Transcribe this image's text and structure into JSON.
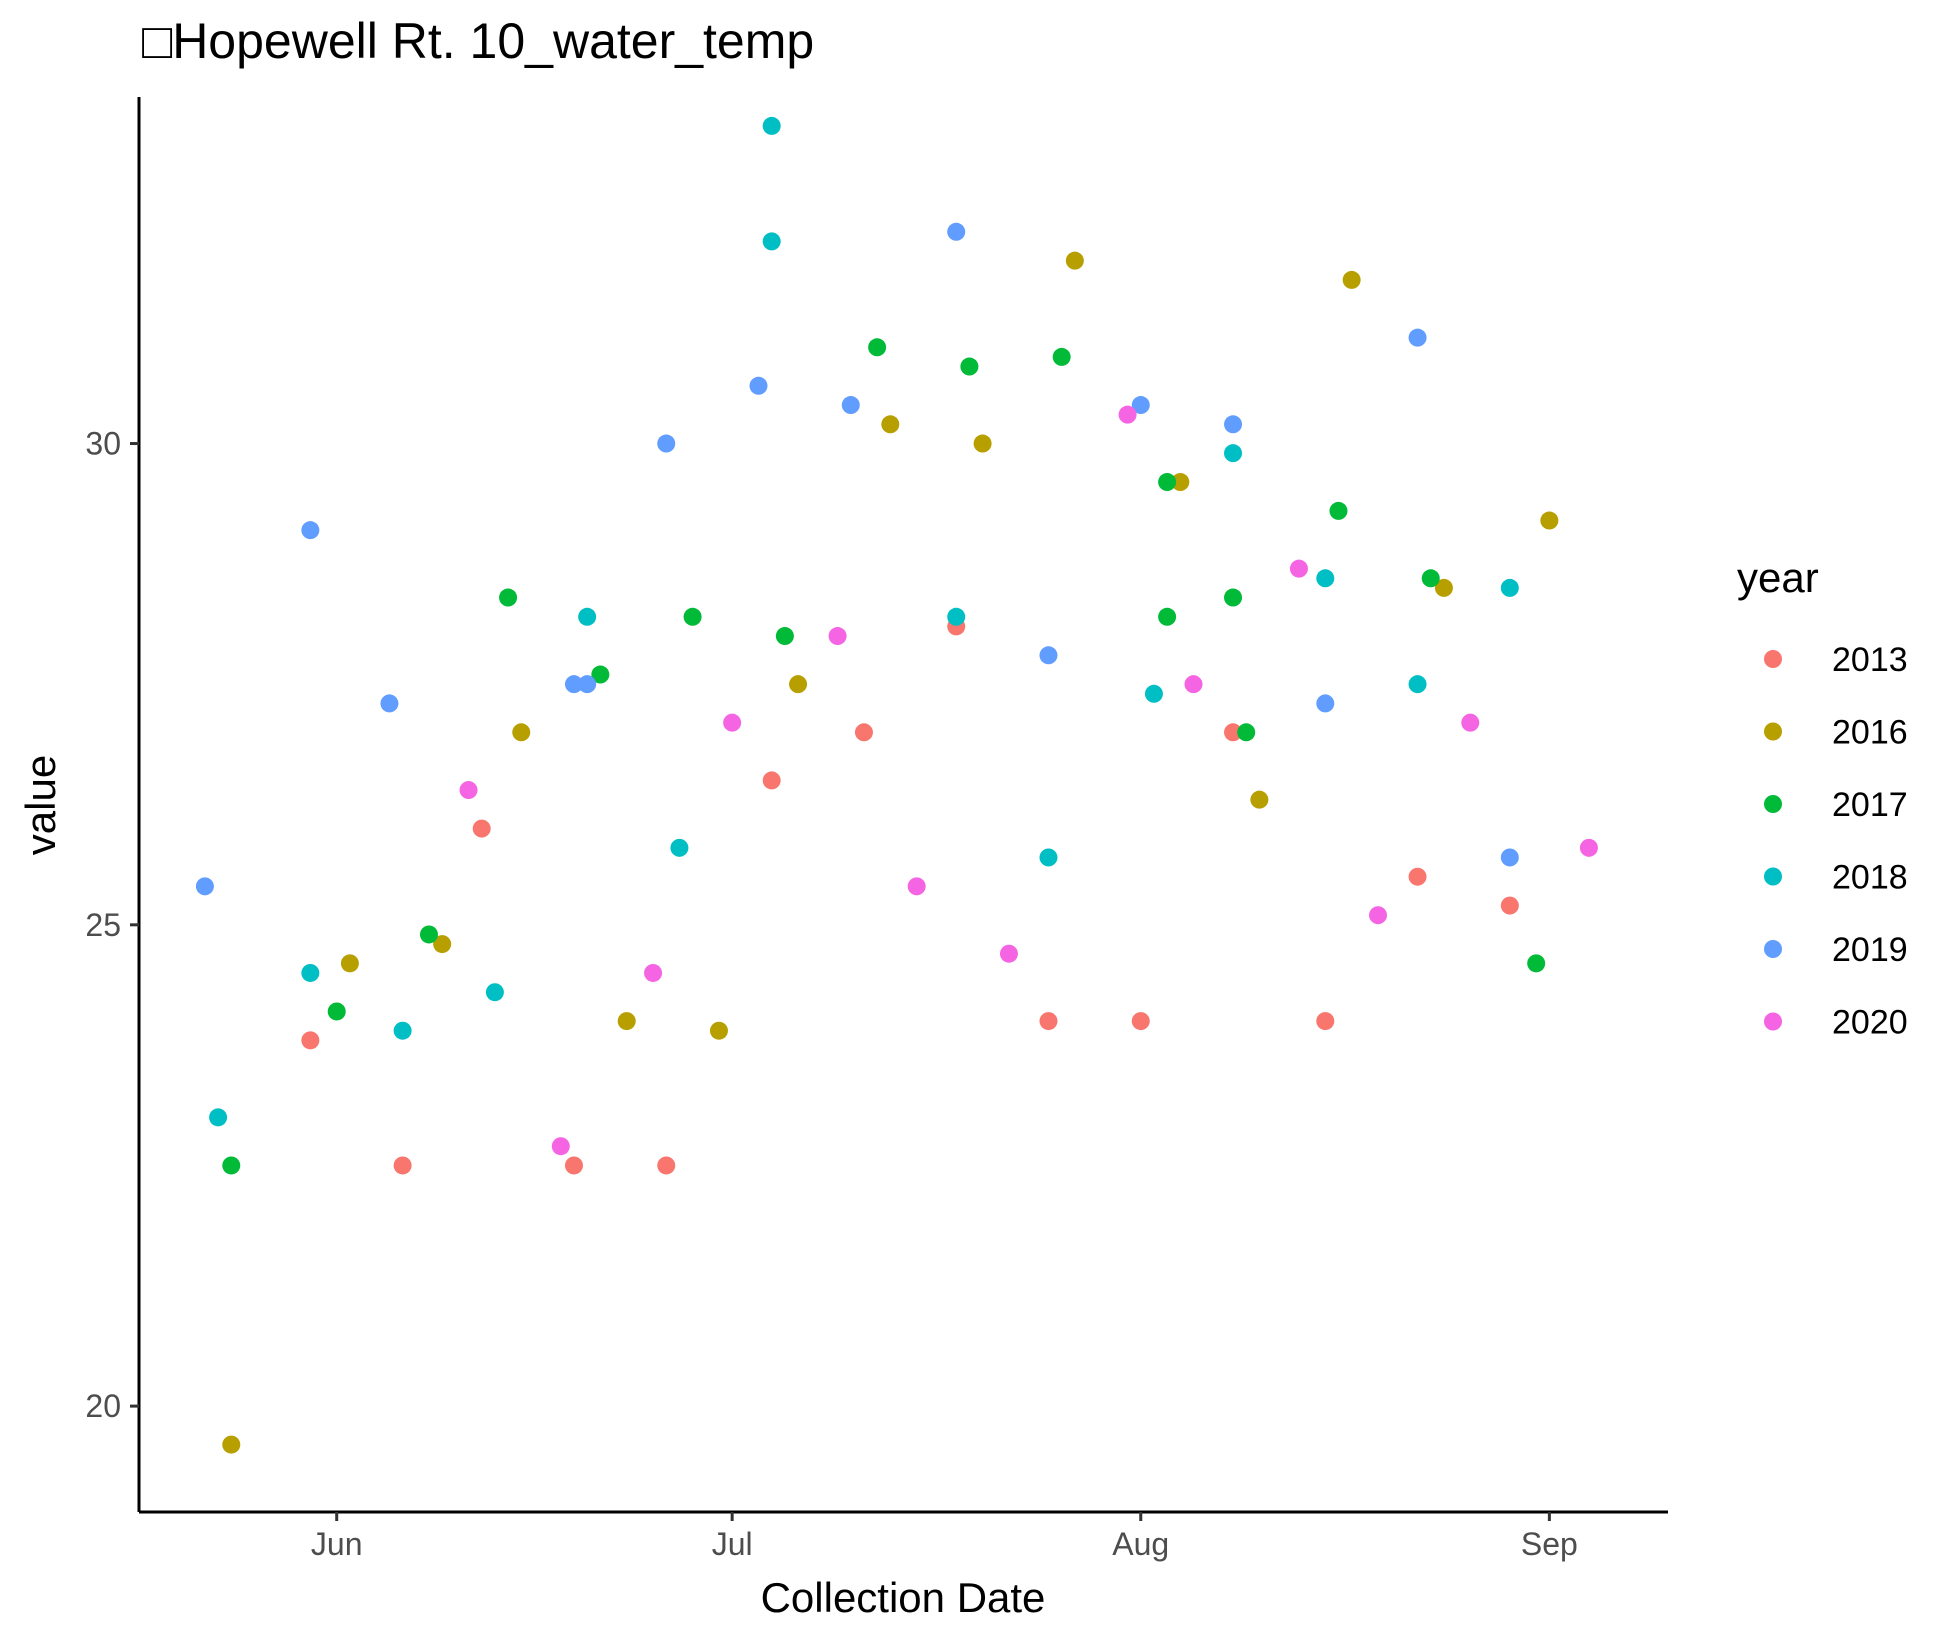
{
  "chart_data": {
    "type": "scatter",
    "title": "□Hopewell Rt. 10_water_temp",
    "xlabel": "Collection Date",
    "ylabel": "value",
    "x_ticks": [
      {
        "date": "2020-06-01",
        "label": "Jun"
      },
      {
        "date": "2020-07-01",
        "label": "Jul"
      },
      {
        "date": "2020-08-01",
        "label": "Aug"
      },
      {
        "date": "2020-09-01",
        "label": "Sep"
      }
    ],
    "y_ticks": [
      20,
      25,
      30
    ],
    "xlim": [
      "2020-05-17",
      "2020-09-10"
    ],
    "ylim": [
      18.9,
      33.6
    ],
    "grid": false,
    "legend": {
      "title": "year",
      "position": "right"
    },
    "series": [
      {
        "name": "2013",
        "color": "#F8766D",
        "points": [
          [
            "2020-05-30",
            23.8
          ],
          [
            "2020-06-06",
            22.5
          ],
          [
            "2020-06-12",
            26.0
          ],
          [
            "2020-06-19",
            22.5
          ],
          [
            "2020-06-26",
            22.5
          ],
          [
            "2020-07-04",
            26.5
          ],
          [
            "2020-07-11",
            27.0
          ],
          [
            "2020-07-18",
            28.1
          ],
          [
            "2020-07-25",
            24.0
          ],
          [
            "2020-08-01",
            24.0
          ],
          [
            "2020-08-08",
            27.0
          ],
          [
            "2020-08-15",
            24.0
          ],
          [
            "2020-08-22",
            25.5
          ],
          [
            "2020-08-29",
            25.2
          ]
        ]
      },
      {
        "name": "2016",
        "color": "#B79F00",
        "points": [
          [
            "2020-05-24",
            19.6
          ],
          [
            "2020-06-02",
            24.6
          ],
          [
            "2020-06-09",
            24.8
          ],
          [
            "2020-06-15",
            27.0
          ],
          [
            "2020-06-23",
            24.0
          ],
          [
            "2020-06-30",
            23.9
          ],
          [
            "2020-07-06",
            27.5
          ],
          [
            "2020-07-13",
            30.2
          ],
          [
            "2020-07-20",
            30.0
          ],
          [
            "2020-07-27",
            31.9
          ],
          [
            "2020-08-04",
            29.6
          ],
          [
            "2020-08-10",
            26.3
          ],
          [
            "2020-08-17",
            31.7
          ],
          [
            "2020-08-24",
            28.5
          ],
          [
            "2020-09-01",
            29.2
          ]
        ]
      },
      {
        "name": "2017",
        "color": "#00BA38",
        "points": [
          [
            "2020-05-24",
            22.5
          ],
          [
            "2020-06-01",
            24.1
          ],
          [
            "2020-06-08",
            24.9
          ],
          [
            "2020-06-14",
            28.4
          ],
          [
            "2020-06-21",
            27.6
          ],
          [
            "2020-06-28",
            28.2
          ],
          [
            "2020-07-05",
            28.0
          ],
          [
            "2020-07-12",
            31.0
          ],
          [
            "2020-07-19",
            30.8
          ],
          [
            "2020-07-26",
            30.9
          ],
          [
            "2020-08-03",
            29.6
          ],
          [
            "2020-08-03",
            28.2
          ],
          [
            "2020-08-08",
            28.4
          ],
          [
            "2020-08-09",
            27.0
          ],
          [
            "2020-08-16",
            29.3
          ],
          [
            "2020-08-23",
            28.6
          ],
          [
            "2020-08-31",
            24.6
          ]
        ]
      },
      {
        "name": "2018",
        "color": "#00BFC4",
        "points": [
          [
            "2020-05-23",
            23.0
          ],
          [
            "2020-05-30",
            24.5
          ],
          [
            "2020-06-06",
            23.9
          ],
          [
            "2020-06-13",
            24.3
          ],
          [
            "2020-06-20",
            28.2
          ],
          [
            "2020-06-27",
            25.8
          ],
          [
            "2020-07-04",
            33.3
          ],
          [
            "2020-07-04",
            32.1
          ],
          [
            "2020-07-18",
            28.2
          ],
          [
            "2020-07-25",
            25.7
          ],
          [
            "2020-08-02",
            27.4
          ],
          [
            "2020-08-08",
            29.9
          ],
          [
            "2020-08-15",
            28.6
          ],
          [
            "2020-08-22",
            27.5
          ],
          [
            "2020-08-29",
            28.5
          ]
        ]
      },
      {
        "name": "2019",
        "color": "#619CFF",
        "points": [
          [
            "2020-05-22",
            25.4
          ],
          [
            "2020-05-30",
            29.1
          ],
          [
            "2020-06-05",
            27.3
          ],
          [
            "2020-06-19",
            27.5
          ],
          [
            "2020-06-20",
            27.5
          ],
          [
            "2020-06-26",
            30.0
          ],
          [
            "2020-07-03",
            30.6
          ],
          [
            "2020-07-10",
            30.4
          ],
          [
            "2020-07-18",
            32.2
          ],
          [
            "2020-07-25",
            27.8
          ],
          [
            "2020-08-01",
            30.4
          ],
          [
            "2020-08-08",
            30.2
          ],
          [
            "2020-08-15",
            27.3
          ],
          [
            "2020-08-22",
            31.1
          ],
          [
            "2020-08-29",
            25.7
          ]
        ]
      },
      {
        "name": "2020",
        "color": "#F564E3",
        "points": [
          [
            "2020-06-11",
            26.4
          ],
          [
            "2020-06-18",
            22.7
          ],
          [
            "2020-06-25",
            24.5
          ],
          [
            "2020-07-01",
            27.1
          ],
          [
            "2020-07-09",
            28.0
          ],
          [
            "2020-07-15",
            25.4
          ],
          [
            "2020-07-22",
            24.7
          ],
          [
            "2020-07-31",
            30.3
          ],
          [
            "2020-08-05",
            27.5
          ],
          [
            "2020-08-13",
            28.7
          ],
          [
            "2020-08-19",
            25.1
          ],
          [
            "2020-08-26",
            27.1
          ],
          [
            "2020-09-04",
            25.8
          ]
        ]
      }
    ]
  }
}
